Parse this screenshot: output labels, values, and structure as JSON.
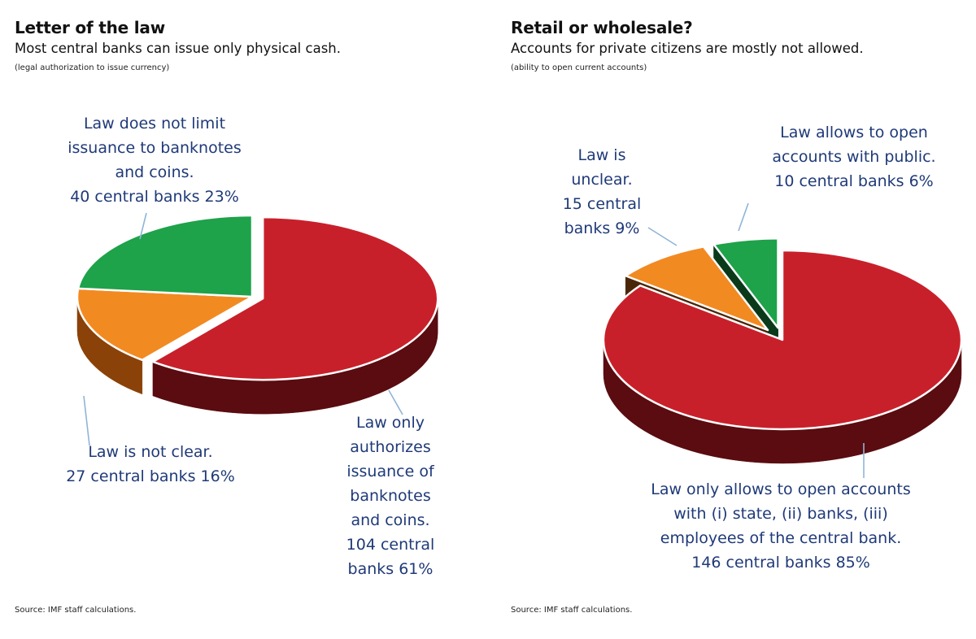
{
  "chart_data": [
    {
      "type": "pie",
      "title": "Letter of the law",
      "subtitle": "Most central banks can issue only physical cash.",
      "note": "(legal authorization to issue currency)",
      "source": "Source: IMF staff calculations.",
      "slices": [
        {
          "label": "Law only authorizes issuance of banknotes and coins.",
          "count_text": "104 central banks 61%",
          "count": 104,
          "percent": 61,
          "color": "#c8202a",
          "dark": "#5a0c10",
          "exploded": true
        },
        {
          "label": "Law is not clear.",
          "count_text": "27 central banks 16%",
          "count": 27,
          "percent": 16,
          "color": "#f28a22",
          "dark": "#8a4208",
          "exploded": false
        },
        {
          "label": "Law does not limit issuance to banknotes and coins.",
          "count_text": "40 central banks 23%",
          "count": 40,
          "percent": 23,
          "color": "#1ea24a",
          "dark": "#0b4a1f",
          "exploded": false
        }
      ],
      "labels_display": [
        "Law only\nauthorizes\nissuance of\nbanknotes\nand coins.\n104 central\nbanks 61%",
        "Law is not clear.\n27 central banks 16%",
        "Law does not limit\nissuance to banknotes\nand coins.\n40 central banks 23%"
      ]
    },
    {
      "type": "pie",
      "title": "Retail or wholesale?",
      "subtitle": "Accounts for private citizens are mostly not allowed.",
      "note": "(ability to open current accounts)",
      "source": "Source: IMF staff calculations.",
      "slices": [
        {
          "label": "Law only allows to open accounts with (i) state, (ii) banks, (iii) employees of the central bank.",
          "count_text": "146 central banks 85%",
          "count": 146,
          "percent": 85,
          "color": "#c8202a",
          "dark": "#5a0c10",
          "exploded": false
        },
        {
          "label": "Law is unclear.",
          "count_text": "15 central banks 9%",
          "count": 15,
          "percent": 9,
          "color": "#f28a22",
          "dark": "#4a2608",
          "exploded": true
        },
        {
          "label": "Law allows to open accounts with public.",
          "count_text": "10 central banks 6%",
          "count": 10,
          "percent": 6,
          "color": "#1ea24a",
          "dark": "#0b3a1a",
          "exploded": true
        }
      ],
      "labels_display": [
        "Law only allows to open accounts\nwith (i) state, (ii) banks, (iii)\nemployees of the central bank.\n146 central banks 85%",
        "Law is\nunclear.\n15 central\nbanks 9%",
        "Law allows to open\naccounts with public.\n10 central banks 6%"
      ]
    }
  ]
}
